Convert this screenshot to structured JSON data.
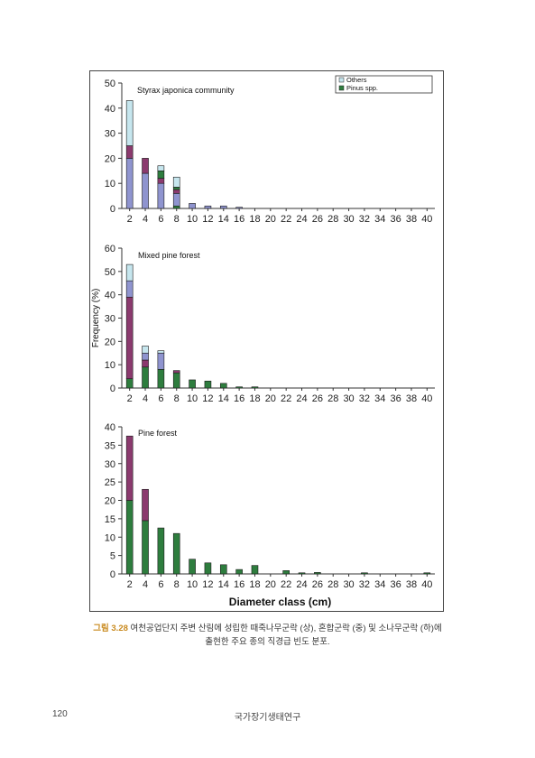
{
  "figure": {
    "caption_label": "그림 3.28",
    "caption_line1": "여천공업단지 주변 산림에 성립한 때죽나무군락 (상), 혼합군락 (중) 및 소나무군락 (하)에",
    "caption_line2": "출현한 주요 종의 직경급 빈도 분포."
  },
  "footer": {
    "page_number": "120",
    "running_head": "국가장기생태연구"
  },
  "colors": {
    "pinus": "#2e7d3e",
    "mid": "#8b3a6e",
    "blue": "#8f94cf",
    "others": "#c6e6ee"
  },
  "chart_data": [
    {
      "type": "bar",
      "stacked": true,
      "title": "Styrax japonica community",
      "xlabel": "",
      "ylabel": "",
      "categories": [
        "2",
        "4",
        "6",
        "8",
        "10",
        "12",
        "14",
        "16",
        "18",
        "20",
        "22",
        "24",
        "26",
        "28",
        "30",
        "32",
        "34",
        "36",
        "38",
        "40"
      ],
      "ylim": [
        0,
        50
      ],
      "yticks": [
        0,
        10,
        20,
        30,
        40,
        50
      ],
      "legend": {
        "placement": "top-right",
        "entries": [
          "Others",
          "Pinus spp."
        ]
      },
      "series": [
        {
          "color": "#2e7d3e",
          "values": [
            0,
            0,
            0,
            1,
            0,
            0,
            0,
            0,
            0,
            0,
            0,
            0,
            0,
            0,
            0,
            0,
            0,
            0,
            0,
            0
          ]
        },
        {
          "color": "#8f94cf",
          "values": [
            20,
            14,
            10,
            5,
            2,
            1,
            1,
            0.5,
            0,
            0,
            0,
            0,
            0,
            0,
            0,
            0,
            0,
            0,
            0,
            0
          ]
        },
        {
          "color": "#8b3a6e",
          "values": [
            5,
            6,
            2,
            1.5,
            0,
            0,
            0,
            0,
            0,
            0,
            0,
            0,
            0,
            0,
            0,
            0,
            0,
            0,
            0,
            0
          ]
        },
        {
          "color": "#2e7d3e",
          "values": [
            0,
            0,
            3,
            1,
            0,
            0,
            0,
            0,
            0,
            0,
            0,
            0,
            0,
            0,
            0,
            0,
            0,
            0,
            0,
            0
          ]
        },
        {
          "name": "Others",
          "color": "#c6e6ee",
          "values": [
            18,
            0,
            2,
            4,
            0,
            0,
            0,
            0,
            0,
            0,
            0,
            0,
            0,
            0,
            0,
            0,
            0,
            0,
            0,
            0
          ]
        }
      ]
    },
    {
      "type": "bar",
      "stacked": true,
      "title": "Mixed pine forest",
      "xlabel": "",
      "ylabel": "Frequency (%)",
      "categories": [
        "2",
        "4",
        "6",
        "8",
        "10",
        "12",
        "14",
        "16",
        "18",
        "20",
        "22",
        "24",
        "26",
        "28",
        "30",
        "32",
        "34",
        "36",
        "38",
        "40"
      ],
      "ylim": [
        0,
        60
      ],
      "yticks": [
        0,
        10,
        20,
        30,
        40,
        50,
        60
      ],
      "series": [
        {
          "name": "Pinus spp.",
          "color": "#2e7d3e",
          "values": [
            4,
            9,
            8,
            6.5,
            3.5,
            3,
            2,
            0.5,
            0.5,
            0,
            0,
            0,
            0,
            0,
            0,
            0,
            0,
            0,
            0,
            0
          ]
        },
        {
          "color": "#8b3a6e",
          "values": [
            35,
            3,
            0,
            1,
            0,
            0,
            0,
            0,
            0,
            0,
            0,
            0,
            0,
            0,
            0,
            0,
            0,
            0,
            0,
            0
          ]
        },
        {
          "color": "#8f94cf",
          "values": [
            7,
            3,
            7,
            0,
            0,
            0,
            0,
            0,
            0,
            0,
            0,
            0,
            0,
            0,
            0,
            0,
            0,
            0,
            0,
            0
          ]
        },
        {
          "name": "Others",
          "color": "#c6e6ee",
          "values": [
            7,
            3,
            1,
            0,
            0,
            0,
            0,
            0,
            0,
            0,
            0,
            0,
            0,
            0,
            0,
            0,
            0,
            0,
            0,
            0
          ]
        }
      ]
    },
    {
      "type": "bar",
      "stacked": true,
      "title": "Pine forest",
      "xlabel": "Diameter class (cm)",
      "ylabel": "",
      "categories": [
        "2",
        "4",
        "6",
        "8",
        "10",
        "12",
        "14",
        "16",
        "18",
        "20",
        "22",
        "24",
        "26",
        "28",
        "30",
        "32",
        "34",
        "36",
        "38",
        "40"
      ],
      "ylim": [
        0,
        40
      ],
      "yticks": [
        0,
        5,
        10,
        15,
        20,
        25,
        30,
        35,
        40
      ],
      "series": [
        {
          "name": "Pinus spp.",
          "color": "#2e7d3e",
          "values": [
            20,
            14.5,
            12.5,
            11,
            4,
            3,
            2.5,
            1.2,
            2.3,
            0,
            0.9,
            0.3,
            0.4,
            0,
            0,
            0.3,
            0,
            0,
            0,
            0.3
          ]
        },
        {
          "color": "#8b3a6e",
          "values": [
            17.5,
            8.5,
            0,
            0,
            0,
            0,
            0,
            0,
            0,
            0,
            0,
            0,
            0,
            0,
            0,
            0,
            0,
            0,
            0,
            0
          ]
        }
      ]
    }
  ]
}
